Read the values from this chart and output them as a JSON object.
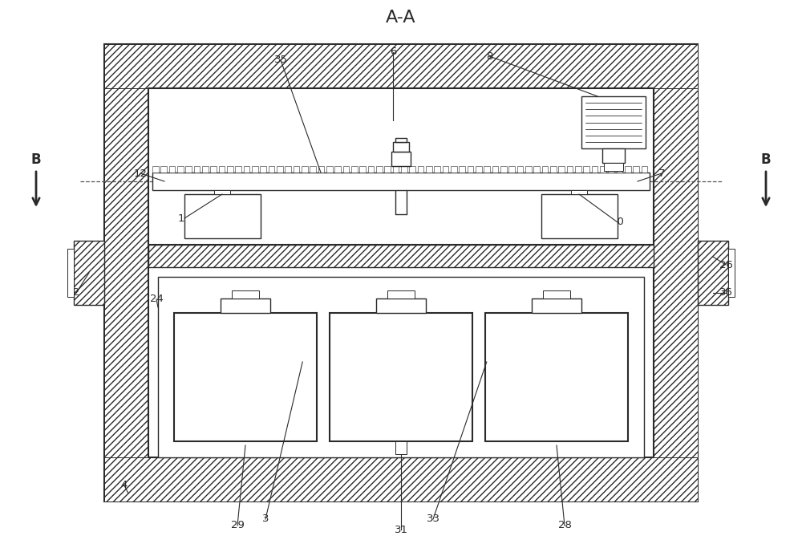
{
  "title": "A-A",
  "bg_color": "#ffffff",
  "line_color": "#2a2a2a",
  "label_color": "#2a2a2a",
  "figsize": [
    10.0,
    6.73
  ],
  "dpi": 100
}
